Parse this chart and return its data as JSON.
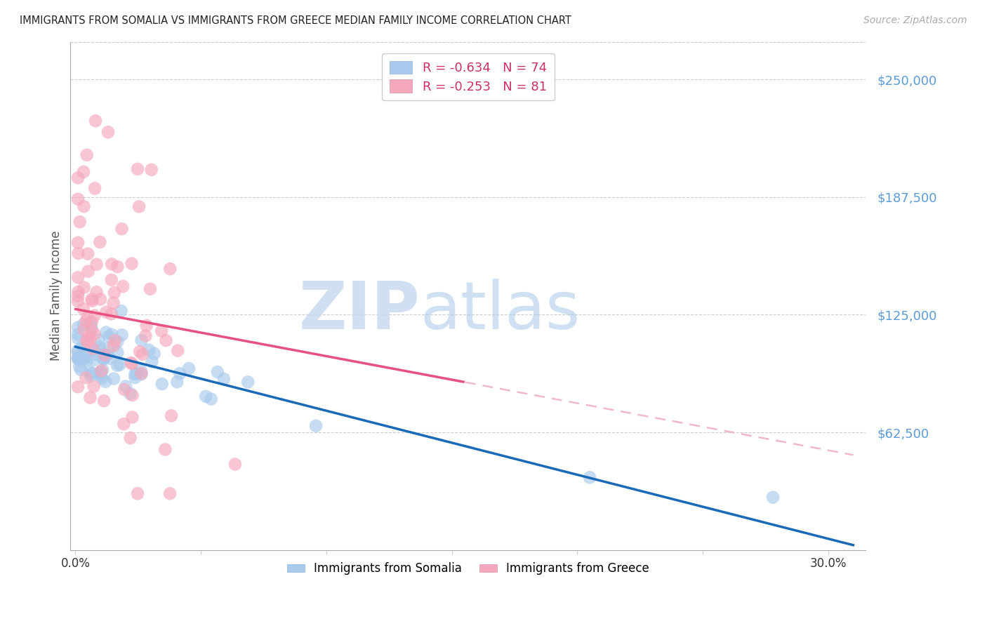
{
  "title": "IMMIGRANTS FROM SOMALIA VS IMMIGRANTS FROM GREECE MEDIAN FAMILY INCOME CORRELATION CHART",
  "source": "Source: ZipAtlas.com",
  "ylabel": "Median Family Income",
  "ytick_labels": [
    "$62,500",
    "$125,000",
    "$187,500",
    "$250,000"
  ],
  "ytick_vals": [
    62500,
    125000,
    187500,
    250000
  ],
  "ylim": [
    0,
    270000
  ],
  "xlim": [
    -0.002,
    0.315
  ],
  "somalia_color": "#a8caec",
  "greece_color": "#f5a8bc",
  "somalia_R": -0.634,
  "somalia_N": 74,
  "greece_R": -0.253,
  "greece_N": 81,
  "legend_somalia_label": "R = -0.634   N = 74",
  "legend_greece_label": "R = -0.253   N = 81",
  "bottom_legend_somalia": "Immigrants from Somalia",
  "bottom_legend_greece": "Immigrants from Greece",
  "watermark_zip": "ZIP",
  "watermark_atlas": "atlas",
  "watermark_color": "#c8daf0",
  "somalia_line_color": "#1a6ab8",
  "greece_line_color": "#e85080",
  "greece_dashed_line_color": "#f0b8c8",
  "somalia_intercept": 108000,
  "somalia_slope": -340000,
  "greece_intercept": 128000,
  "greece_slope": -250000,
  "xtick_positions": [
    0.0,
    0.05,
    0.1,
    0.15,
    0.2,
    0.25,
    0.3
  ],
  "xtick_labels": [
    "0.0%",
    "",
    "",
    "",
    "",
    "",
    "30.0%"
  ]
}
